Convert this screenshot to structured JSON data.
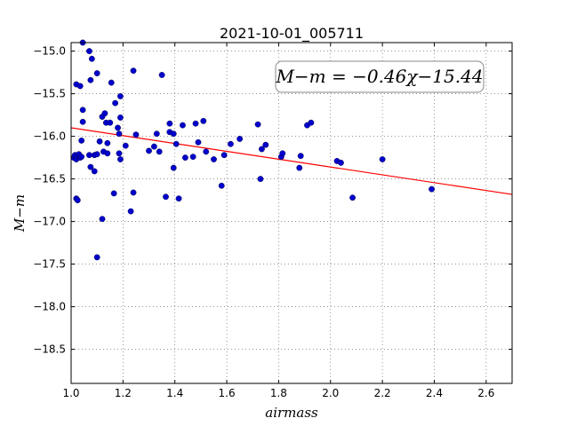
{
  "chart_data": {
    "type": "scatter",
    "title": "2021-10-01_005711",
    "xlabel": "airmass",
    "ylabel": "M−m",
    "xlim": [
      1.0,
      2.7
    ],
    "ylim": [
      -18.9,
      -14.9
    ],
    "y_inverted": true,
    "grid": true,
    "x_ticks": [
      1.0,
      1.2,
      1.4,
      1.6,
      1.8,
      2.0,
      2.2,
      2.4,
      2.6
    ],
    "x_tick_labels": [
      "1.0",
      "1.2",
      "1.4",
      "1.6",
      "1.8",
      "2.0",
      "2.2",
      "2.4",
      "2.6"
    ],
    "y_ticks": [
      -15.0,
      -15.5,
      -16.0,
      -16.5,
      -17.0,
      -17.5,
      -18.0,
      -18.5
    ],
    "y_tick_labels": [
      "−15.0",
      "−15.5",
      "−16.0",
      "−16.5",
      "−17.0",
      "−17.5",
      "−18.0",
      "−18.5"
    ],
    "fit_label": "M−m = −0.46χ−15.44",
    "fit_line": {
      "slope": -0.46,
      "intercept": -15.44,
      "color": "#ff0000"
    },
    "point_color": "#0000cc",
    "points": [
      [
        1.01,
        -16.25
      ],
      [
        1.015,
        -16.22
      ],
      [
        1.02,
        -16.27
      ],
      [
        1.025,
        -16.23
      ],
      [
        1.03,
        -16.21
      ],
      [
        1.035,
        -16.25
      ],
      [
        1.04,
        -16.24
      ],
      [
        1.02,
        -16.73
      ],
      [
        1.025,
        -16.75
      ],
      [
        1.02,
        -15.39
      ],
      [
        1.035,
        -15.41
      ],
      [
        1.045,
        -14.9
      ],
      [
        1.045,
        -15.69
      ],
      [
        1.045,
        -15.83
      ],
      [
        1.04,
        -16.05
      ],
      [
        1.07,
        -15.0
      ],
      [
        1.08,
        -15.09
      ],
      [
        1.075,
        -15.34
      ],
      [
        1.1,
        -15.26
      ],
      [
        1.07,
        -16.22
      ],
      [
        1.09,
        -16.22
      ],
      [
        1.1,
        -16.21
      ],
      [
        1.075,
        -16.36
      ],
      [
        1.09,
        -16.41
      ],
      [
        1.1,
        -17.42
      ],
      [
        1.12,
        -16.97
      ],
      [
        1.11,
        -16.06
      ],
      [
        1.12,
        -15.77
      ],
      [
        1.13,
        -15.73
      ],
      [
        1.135,
        -15.84
      ],
      [
        1.15,
        -15.84
      ],
      [
        1.14,
        -16.08
      ],
      [
        1.125,
        -16.18
      ],
      [
        1.14,
        -16.2
      ],
      [
        1.155,
        -15.37
      ],
      [
        1.165,
        -16.67
      ],
      [
        1.17,
        -15.61
      ],
      [
        1.18,
        -15.9
      ],
      [
        1.185,
        -15.97
      ],
      [
        1.19,
        -15.53
      ],
      [
        1.19,
        -15.78
      ],
      [
        1.185,
        -16.2
      ],
      [
        1.19,
        -16.27
      ],
      [
        1.21,
        -16.11
      ],
      [
        1.23,
        -16.88
      ],
      [
        1.24,
        -15.23
      ],
      [
        1.24,
        -16.66
      ],
      [
        1.25,
        -15.98
      ],
      [
        1.3,
        -16.17
      ],
      [
        1.32,
        -16.12
      ],
      [
        1.33,
        -15.97
      ],
      [
        1.34,
        -16.18
      ],
      [
        1.35,
        -15.28
      ],
      [
        1.365,
        -16.71
      ],
      [
        1.38,
        -15.85
      ],
      [
        1.38,
        -15.95
      ],
      [
        1.395,
        -16.37
      ],
      [
        1.395,
        -15.97
      ],
      [
        1.405,
        -16.09
      ],
      [
        1.415,
        -16.73
      ],
      [
        1.43,
        -15.87
      ],
      [
        1.44,
        -16.25
      ],
      [
        1.47,
        -16.24
      ],
      [
        1.48,
        -15.85
      ],
      [
        1.49,
        -16.07
      ],
      [
        1.51,
        -15.82
      ],
      [
        1.52,
        -16.18
      ],
      [
        1.55,
        -16.27
      ],
      [
        1.58,
        -16.58
      ],
      [
        1.59,
        -16.22
      ],
      [
        1.615,
        -16.09
      ],
      [
        1.65,
        -16.03
      ],
      [
        1.72,
        -15.86
      ],
      [
        1.73,
        -16.5
      ],
      [
        1.735,
        -16.15
      ],
      [
        1.75,
        -16.1
      ],
      [
        1.81,
        -16.24
      ],
      [
        1.815,
        -16.2
      ],
      [
        1.88,
        -16.37
      ],
      [
        1.885,
        -16.23
      ],
      [
        1.91,
        -15.87
      ],
      [
        1.925,
        -15.84
      ],
      [
        2.025,
        -16.29
      ],
      [
        2.04,
        -16.31
      ],
      [
        2.085,
        -16.72
      ],
      [
        2.2,
        -16.27
      ],
      [
        2.39,
        -16.62
      ]
    ]
  }
}
